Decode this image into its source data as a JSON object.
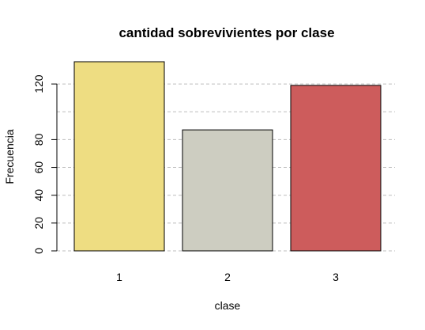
{
  "chart_data": {
    "type": "bar",
    "title": "cantidad sobrevivientes por clase",
    "xlabel": "clase",
    "ylabel": "Frecuencia",
    "categories": [
      "1",
      "2",
      "3"
    ],
    "values": [
      136,
      87,
      119
    ],
    "bar_colors": [
      "#EEDD82",
      "#CDCDC1",
      "#CD5C5C"
    ],
    "y_ticks": [
      0,
      20,
      40,
      60,
      80,
      120
    ],
    "gridlines_y": [
      0,
      20,
      40,
      60,
      80,
      100,
      120
    ],
    "grid": "horizontal dashed",
    "ylim": [
      0,
      136
    ]
  }
}
